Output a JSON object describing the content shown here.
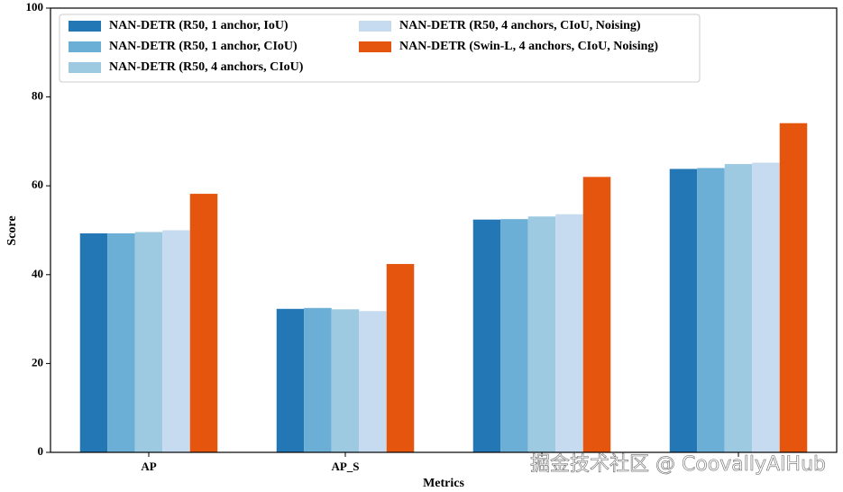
{
  "chart_data": {
    "type": "bar",
    "x_label": "Metrics",
    "y_label": "Score",
    "categories": [
      "AP",
      "AP_S",
      null,
      null
    ],
    "series": [
      {
        "name": "NAN-DETR (R50, 1 anchor, IoU)",
        "color": "#2377b5",
        "values": [
          49.3,
          32.3,
          52.4,
          63.8
        ]
      },
      {
        "name": "NAN-DETR (R50, 1 anchor, CIoU)",
        "color": "#6baed6",
        "values": [
          49.3,
          32.5,
          52.5,
          64.0
        ]
      },
      {
        "name": "NAN-DETR (R50, 4 anchors, CIoU)",
        "color": "#9ecae1",
        "values": [
          49.6,
          32.2,
          53.1,
          64.9
        ]
      },
      {
        "name": "NAN-DETR (R50, 4 anchors, CIoU, Noising)",
        "color": "#c6dbef",
        "values": [
          50.0,
          31.8,
          53.6,
          65.2
        ]
      },
      {
        "name": "NAN-DETR (Swin-L, 4 anchors, CIoU, Noising)",
        "color": "#e6550d",
        "values": [
          58.2,
          42.4,
          62.0,
          74.1
        ]
      }
    ],
    "ylim": [
      0,
      100
    ],
    "yticks": [
      0,
      20,
      40,
      60,
      80,
      100
    ],
    "grid": false,
    "legend": "upper left",
    "watermark": "掘金技术社区 @ CoovallyAIHub"
  }
}
